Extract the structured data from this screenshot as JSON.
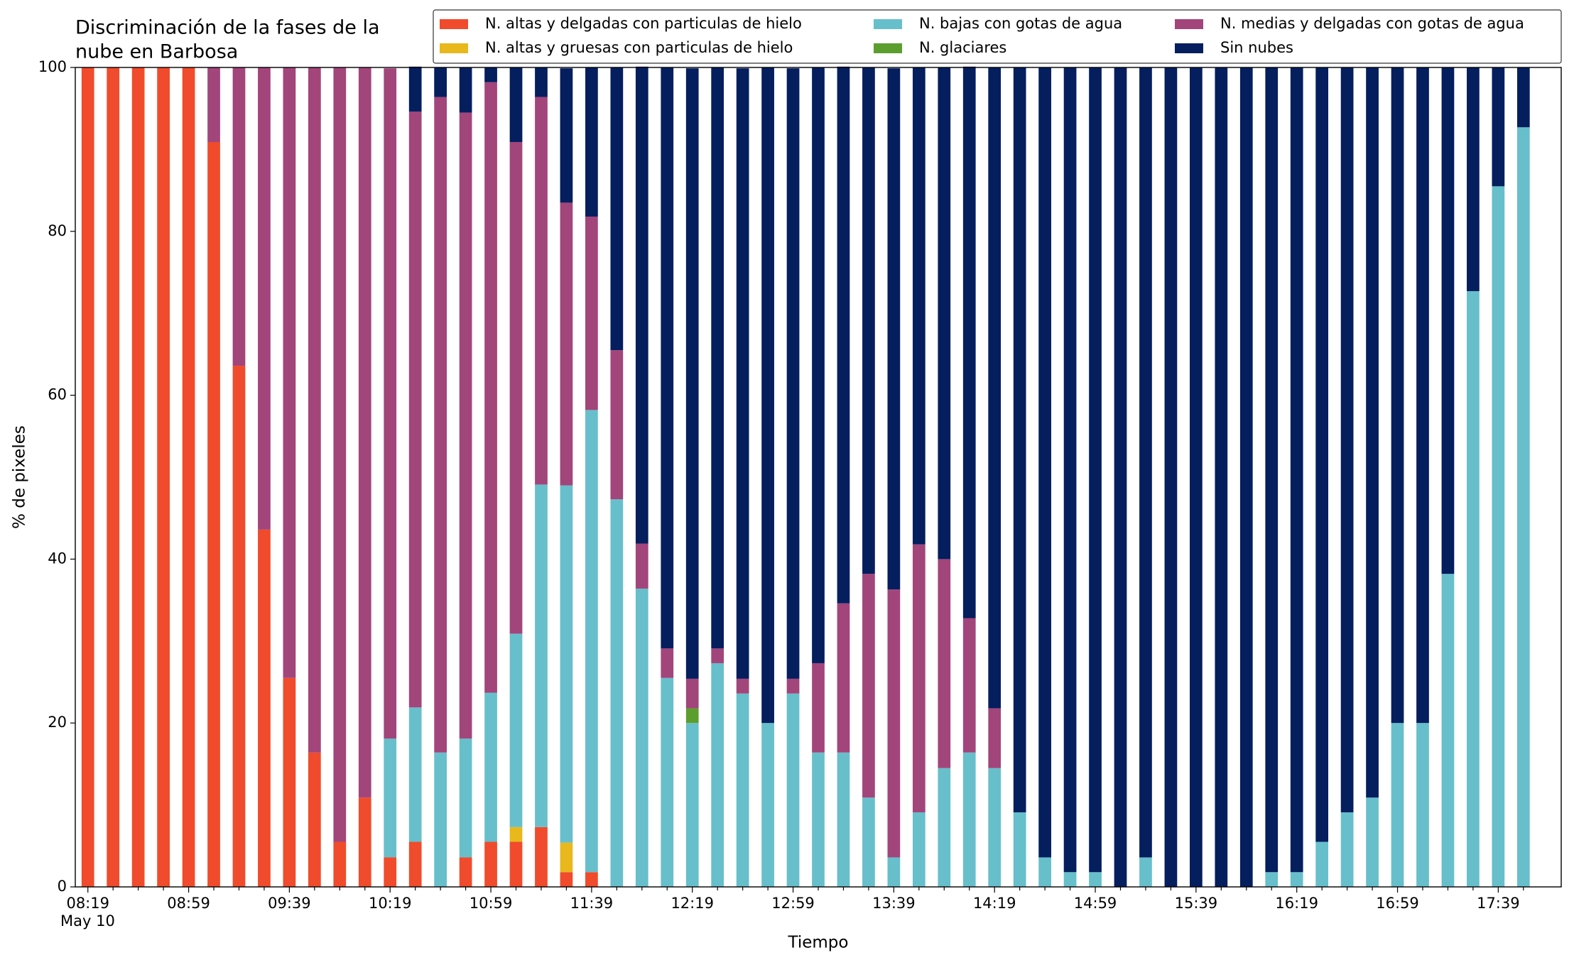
{
  "chart_data": {
    "type": "stacked_bar",
    "title": [
      "Discriminación de la fases de la",
      "nube en Barbosa"
    ],
    "xlabel": "Tiempo",
    "ylabel": "% de pixeles",
    "x_date_label": "May 10",
    "categories": [
      "08:19",
      null,
      null,
      null,
      "08:59",
      null,
      null,
      null,
      "09:39",
      null,
      null,
      null,
      "10:19",
      null,
      null,
      null,
      "10:59",
      null,
      null,
      null,
      "11:39",
      null,
      null,
      null,
      "12:19",
      null,
      null,
      null,
      "12:59",
      null,
      null,
      null,
      "13:39",
      null,
      null,
      null,
      "14:19",
      null,
      null,
      null,
      "14:59",
      null,
      null,
      null,
      "15:39",
      null,
      null,
      null,
      "16:19",
      null,
      null,
      null,
      "16:59",
      null,
      null,
      null,
      "17:39",
      null
    ],
    "ylim": [
      0,
      100
    ],
    "yticks": [
      0,
      20,
      40,
      60,
      80,
      100
    ],
    "legend": "top-right",
    "series": [
      {
        "name": "N. altas y delgadas con particulas de hielo",
        "color": "#f04b2c",
        "values": [
          100,
          100,
          100,
          100,
          100,
          90.9,
          63.6,
          43.6,
          25.5,
          16.4,
          5.5,
          10.9,
          3.6,
          5.5,
          0,
          3.6,
          5.5,
          5.5,
          7.3,
          1.8,
          1.8,
          0,
          0,
          0,
          0,
          0,
          0,
          0,
          0,
          0,
          0,
          0,
          0,
          0,
          0,
          0,
          0,
          0,
          0,
          0,
          0,
          0,
          0,
          0,
          0,
          0,
          0,
          0,
          0,
          0,
          0,
          0,
          0,
          0,
          0,
          0,
          0,
          0
        ]
      },
      {
        "name": "N. altas y gruesas con particulas de hielo",
        "color": "#e8b81c",
        "values": [
          0,
          0,
          0,
          0,
          0,
          0,
          0,
          0,
          0,
          0,
          0,
          0,
          0,
          0,
          0,
          0,
          0,
          1.8,
          0,
          3.6,
          0,
          0,
          0,
          0,
          0,
          0,
          0,
          0,
          0,
          0,
          0,
          0,
          0,
          0,
          0,
          0,
          0,
          0,
          0,
          0,
          0,
          0,
          0,
          0,
          0,
          0,
          0,
          0,
          0,
          0,
          0,
          0,
          0,
          0,
          0,
          0,
          0,
          0
        ]
      },
      {
        "name": "N. bajas con gotas de agua",
        "color": "#67bfcb",
        "values": [
          0,
          0,
          0,
          0,
          0,
          0,
          0,
          0,
          0,
          0,
          0,
          0,
          14.5,
          16.4,
          16.4,
          14.5,
          18.2,
          23.6,
          41.8,
          43.6,
          56.4,
          47.3,
          36.4,
          25.5,
          20,
          27.3,
          23.6,
          20,
          23.6,
          16.4,
          16.4,
          10.9,
          3.6,
          9.1,
          14.5,
          16.4,
          14.5,
          9.1,
          3.6,
          1.8,
          1.8,
          0,
          3.6,
          0,
          0,
          0,
          0,
          1.8,
          1.8,
          5.5,
          9.1,
          10.9,
          20,
          20,
          38.2,
          72.7,
          85.5,
          92.7
        ]
      },
      {
        "name": "N. glaciares",
        "color": "#5c9e2e",
        "values": [
          0,
          0,
          0,
          0,
          0,
          0,
          0,
          0,
          0,
          0,
          0,
          0,
          0,
          0,
          0,
          0,
          0,
          0,
          0,
          0,
          0,
          0,
          0,
          0,
          1.8,
          0,
          0,
          0,
          0,
          0,
          0,
          0,
          0,
          0,
          0,
          0,
          0,
          0,
          0,
          0,
          0,
          0,
          0,
          0,
          0,
          0,
          0,
          0,
          0,
          0,
          0,
          0,
          0,
          0,
          0,
          0,
          0,
          0
        ]
      },
      {
        "name": "N. medias y delgadas con gotas de agua",
        "color": "#a2457b",
        "values": [
          0,
          0,
          0,
          0,
          0,
          9.1,
          36.4,
          56.4,
          74.5,
          83.6,
          94.5,
          89.1,
          81.8,
          72.7,
          80,
          76.4,
          74.5,
          60,
          47.3,
          34.5,
          23.6,
          18.2,
          5.5,
          3.6,
          3.6,
          1.8,
          1.8,
          0,
          1.8,
          10.9,
          18.2,
          27.3,
          32.7,
          32.7,
          25.5,
          16.4,
          7.3,
          0,
          0,
          0,
          0,
          0,
          0,
          0,
          0,
          0,
          0,
          0,
          0,
          0,
          0,
          0,
          0,
          0,
          0,
          0,
          0,
          0
        ]
      },
      {
        "name": "Sin nubes",
        "color": "#041e5e",
        "values": [
          0,
          0,
          0,
          0,
          0,
          0,
          0,
          0,
          0,
          0,
          0,
          0,
          0,
          5.5,
          3.6,
          5.5,
          1.8,
          9.1,
          3.6,
          16.4,
          18.2,
          34.5,
          58.2,
          70.9,
          74.5,
          70.9,
          74.5,
          80,
          74.5,
          72.7,
          65.5,
          61.8,
          63.6,
          58.2,
          60,
          67.3,
          78.2,
          90.9,
          96.4,
          98.2,
          98.2,
          100,
          96.4,
          100,
          100,
          100,
          100,
          98.2,
          98.2,
          94.5,
          90.9,
          89.1,
          80,
          80,
          61.8,
          27.3,
          14.5,
          7.3
        ]
      }
    ]
  }
}
